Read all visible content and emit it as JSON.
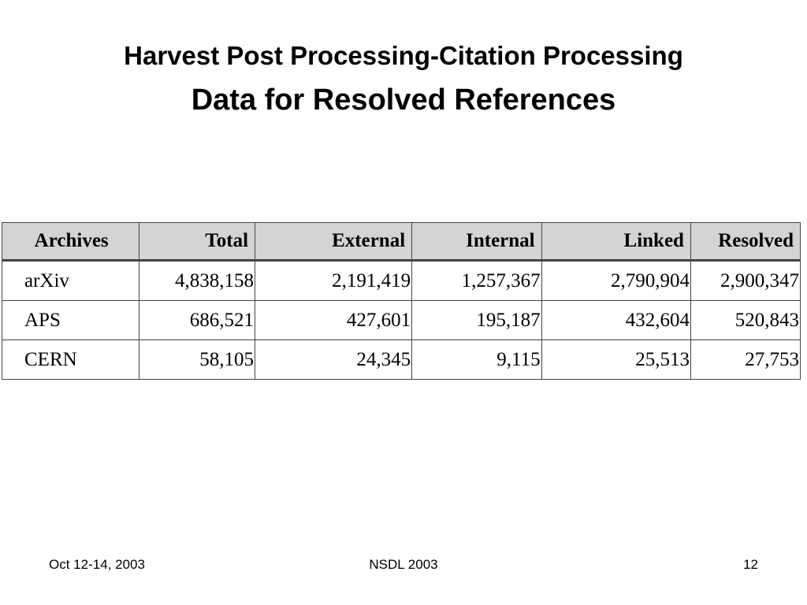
{
  "title": {
    "line1": "Harvest Post Processing-Citation Processing",
    "line2": "Data for Resolved References"
  },
  "table": {
    "headers": [
      "Archives",
      "Total",
      "External",
      "Internal",
      "Linked",
      "Resolved"
    ],
    "rows": [
      [
        "arXiv",
        "4,838,158",
        "2,191,419",
        "1,257,367",
        "2,790,904",
        "2,900,347"
      ],
      [
        "APS",
        "686,521",
        "427,601",
        "195,187",
        "432,604",
        "520,843"
      ],
      [
        "CERN",
        "58,105",
        "24,345",
        "9,115",
        "25,513",
        "27,753"
      ]
    ]
  },
  "footer": {
    "date": "Oct 12-14, 2003",
    "event": "NSDL 2003",
    "page_number": "12"
  },
  "colors": {
    "header_background": "#d4d4d4",
    "border": "#444444",
    "text": "#000000"
  }
}
